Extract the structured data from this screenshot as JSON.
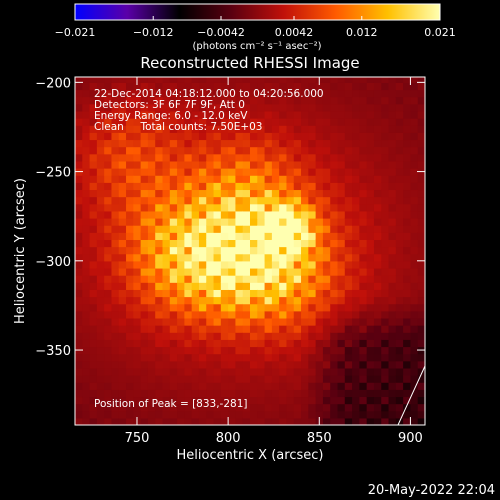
{
  "chart_data": {
    "type": "heatmap",
    "title": "Reconstructed RHESSI Image",
    "xlabel": "Heliocentric X (arcsec)",
    "ylabel": "Heliocentric Y (arcsec)",
    "xlim": [
      716,
      908
    ],
    "ylim": [
      -392,
      -197
    ],
    "x_ticks": [
      750,
      800,
      850,
      900
    ],
    "x_tick_labels": [
      "750",
      "800",
      "850",
      "900"
    ],
    "y_ticks": [
      -200,
      -250,
      -300,
      -350
    ],
    "y_tick_labels": [
      "−200",
      "−250",
      "−300",
      "−350"
    ],
    "colorbar": {
      "min": -0.021,
      "max": 0.021,
      "ticks": [
        -0.021,
        -0.012,
        -0.0042,
        0.0042,
        0.012,
        0.021
      ],
      "tick_labels": [
        "−0.021",
        "−0.012",
        "−0.0042",
        "0.0042",
        "0.012",
        "0.021"
      ],
      "units": "(photons cm⁻² s⁻¹ asec⁻²)",
      "colormap": [
        "#0000ff",
        "#5a00a8",
        "#000000",
        "#5a0010",
        "#c0100a",
        "#ff5a00",
        "#ffc000",
        "#ffffb0"
      ]
    },
    "annotations": [
      "22-Dec-2014 04:18:12.000 to 04:20:56.000",
      "Detectors: 3F 6F 7F 9F, Att 0",
      "Energy Range: 6.0 - 12.0 keV",
      "Clean     Total counts: 7.50E+03",
      "Position of Peak = [833,-281]"
    ],
    "sources": [
      {
        "x": 833,
        "y": -281,
        "value": 0.021
      },
      {
        "x": 828,
        "y": -305,
        "value": 0.014
      },
      {
        "x": 795,
        "y": -300,
        "value": 0.012
      },
      {
        "x": 770,
        "y": -295,
        "value": 0.009
      },
      {
        "x": 745,
        "y": -240,
        "value": 0.008
      },
      {
        "x": 810,
        "y": -260,
        "value": 0.009
      }
    ],
    "negative_region": {
      "x_range": [
        840,
        908
      ],
      "y_range": [
        -392,
        -320
      ],
      "value": -0.006
    },
    "limb_line": true
  },
  "timestamp": "20-May-2022 22:04"
}
